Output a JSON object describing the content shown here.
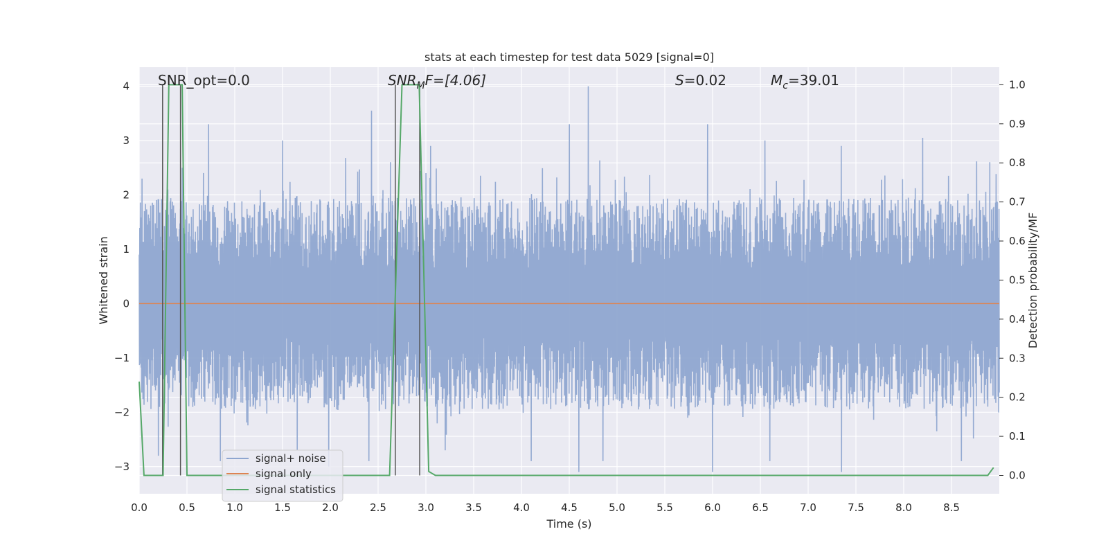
{
  "chart_data": {
    "type": "line",
    "title": "stats at each timestep for test data 5029 [signal=0]",
    "xlabel": "Time (s)",
    "ylabel": "Whitened strain",
    "ylabel_right": "Detection probability/MF",
    "xlim": [
      0.0,
      9.0
    ],
    "ylim": [
      -3.5,
      4.35
    ],
    "ylim_right": [
      -0.047,
      1.045
    ],
    "x_ticks": [
      "0.0",
      "0.5",
      "1.0",
      "1.5",
      "2.0",
      "2.5",
      "3.0",
      "3.5",
      "4.0",
      "4.5",
      "5.0",
      "5.5",
      "6.0",
      "6.5",
      "7.0",
      "7.5",
      "8.0",
      "8.5"
    ],
    "y_ticks": [
      "−3",
      "−2",
      "−1",
      "0",
      "1",
      "2",
      "3",
      "4"
    ],
    "y_ticks_right": [
      "0.0",
      "0.1",
      "0.2",
      "0.3",
      "0.4",
      "0.5",
      "0.6",
      "0.7",
      "0.8",
      "0.9",
      "1.0"
    ],
    "grid": true,
    "legend_position": "lower-left",
    "annotations": {
      "snr_opt": "SNR_opt=0.0",
      "snr_mf_main": "SNR",
      "snr_mf_sub": "M",
      "snr_mf_rest": "F=[4.06]",
      "s_italic": "S",
      "s_rest": "=0.02",
      "mc_main": "M",
      "mc_sub": "c",
      "mc_rest": "=39.01"
    },
    "series": [
      {
        "name": "signal+ noise",
        "color": "#8fa6d0",
        "description_values": "whitened noise strain, roughly in [-3.1, 4.0]",
        "peaks": [
          [
            0.03,
            2.3
          ],
          [
            0.3,
            2.1
          ],
          [
            0.45,
            2.5
          ],
          [
            0.73,
            3.3
          ],
          [
            1.5,
            3.0
          ],
          [
            2.43,
            3.55
          ],
          [
            2.63,
            2.6
          ],
          [
            3.0,
            2.4
          ],
          [
            3.05,
            2.9
          ],
          [
            4.5,
            3.3
          ],
          [
            4.7,
            4.0
          ],
          [
            5.95,
            3.3
          ],
          [
            6.55,
            3.0
          ],
          [
            7.35,
            2.9
          ],
          [
            8.2,
            3.05
          ],
          [
            8.9,
            2.6
          ]
        ],
        "troughs": [
          [
            0.2,
            -2.8
          ],
          [
            0.85,
            -2.9
          ],
          [
            1.65,
            -2.7
          ],
          [
            1.98,
            -3.0
          ],
          [
            2.4,
            -2.9
          ],
          [
            3.2,
            -2.7
          ],
          [
            4.1,
            -2.9
          ],
          [
            4.6,
            -3.1
          ],
          [
            4.85,
            -2.9
          ],
          [
            6.0,
            -3.1
          ],
          [
            6.6,
            -2.9
          ],
          [
            7.35,
            -3.1
          ],
          [
            8.6,
            -2.9
          ]
        ]
      },
      {
        "name": "signal only",
        "color": "#dd8452",
        "x": [
          0.0,
          9.0
        ],
        "y": [
          0.0,
          0.0
        ]
      },
      {
        "name": "signal statistics",
        "color": "#55a868",
        "axis": "right",
        "x": [
          0.0,
          0.05,
          0.25,
          0.31,
          0.41,
          0.45,
          0.5,
          1.0,
          2.0,
          2.62,
          2.75,
          2.93,
          3.03,
          3.1,
          4.0,
          6.0,
          8.0,
          8.88,
          8.94
        ],
        "y": [
          0.24,
          0.0,
          0.0,
          1.0,
          1.0,
          1.0,
          0.0,
          0.0,
          0.0,
          0.0,
          1.0,
          1.0,
          0.01,
          0.0,
          0.0,
          0.0,
          0.0,
          0.0,
          0.02
        ]
      }
    ],
    "vertical_markers": [
      0.245,
      0.432,
      2.68,
      2.935
    ]
  }
}
